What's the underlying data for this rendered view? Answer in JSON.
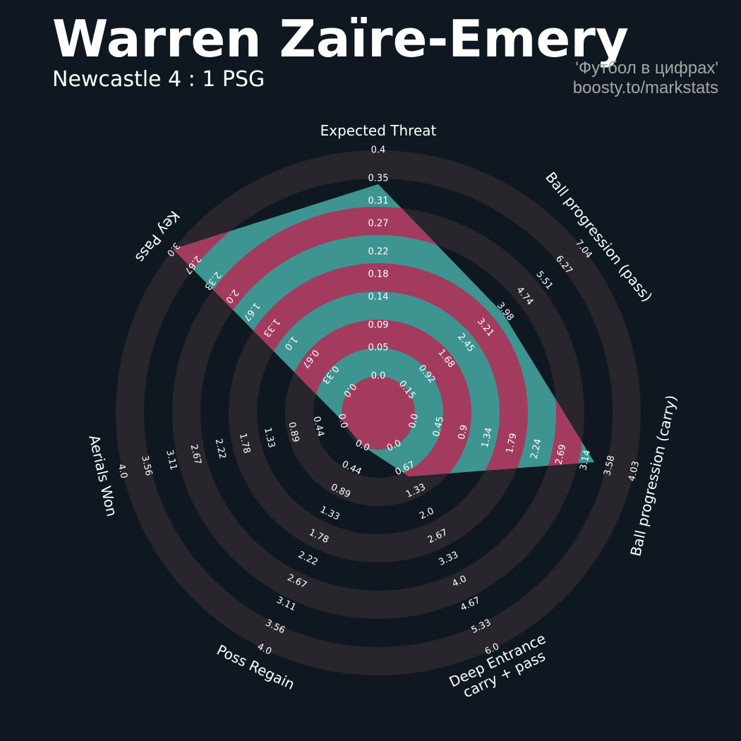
{
  "chart_data": {
    "type": "radar",
    "title": "Warren Zaïre-Emery",
    "subtitle": "Newcastle 4 : 1 PSG",
    "credits": [
      "'Футбол в цифрах'",
      "boosty.to/markstats"
    ],
    "ring_color": "#28252c",
    "background_color": "#0f1820",
    "axes": [
      {
        "label": "Expected Threat",
        "lim": [
          0,
          0.4
        ],
        "ticks": [
          {
            "value": 0,
            "label": "0.0"
          },
          0.05,
          0.09,
          0.14,
          0.18,
          0.22,
          0.27,
          0.31,
          0.35,
          0.4
        ]
      },
      {
        "label": "Ball progression (pass)",
        "lim": [
          0.15,
          7.04
        ],
        "ticks": [
          0.15,
          0.92,
          1.68,
          2.45,
          3.21,
          3.98,
          4.74,
          5.51,
          6.27,
          7.04
        ]
      },
      {
        "label": "Ball progression (carry)",
        "lim": [
          0,
          4.03
        ],
        "ticks": [
          {
            "value": 0,
            "label": "0.0"
          },
          0.45,
          0.9,
          1.34,
          1.79,
          2.24,
          2.69,
          3.14,
          3.58,
          4.03
        ]
      },
      {
        "label": "Deep Entrance\ncarry + pass",
        "lim": [
          0,
          6
        ],
        "ticks": [
          {
            "value": 0,
            "label": "0.0"
          },
          0.67,
          1.33,
          {
            "value": 2,
            "label": "2.0"
          },
          2.67,
          3.33,
          {
            "value": 4,
            "label": "4.0"
          },
          4.67,
          5.33,
          {
            "value": 6,
            "label": "6.0"
          }
        ]
      },
      {
        "label": "Poss Regain",
        "lim": [
          0,
          4
        ],
        "ticks": [
          {
            "value": 0,
            "label": "0.0"
          },
          0.44,
          0.89,
          1.33,
          1.78,
          2.22,
          2.67,
          3.11,
          3.56,
          {
            "value": 4,
            "label": "4.0"
          }
        ]
      },
      {
        "label": "Aerials Won",
        "lim": [
          0,
          4
        ],
        "ticks": [
          {
            "value": 0,
            "label": "0.0"
          },
          0.44,
          0.89,
          1.33,
          1.78,
          2.22,
          2.67,
          3.11,
          3.56,
          {
            "value": 4,
            "label": "4.0"
          }
        ]
      },
      {
        "label": "Key Pass",
        "lim": [
          0,
          3
        ],
        "ticks": [
          {
            "value": 0,
            "label": "0.0"
          },
          0.33,
          0.67,
          {
            "value": 1,
            "label": "1.0"
          },
          1.33,
          1.67,
          {
            "value": 2,
            "label": "2.0"
          },
          2.33,
          2.67,
          {
            "value": 3,
            "label": "3.0"
          }
        ]
      }
    ],
    "series": [
      {
        "color": "#3e9490",
        "ring_fill": "#a33b5f",
        "values": [
          0.34,
          3.9,
          3.3,
          0.9,
          0,
          0,
          3.0
        ]
      }
    ]
  }
}
